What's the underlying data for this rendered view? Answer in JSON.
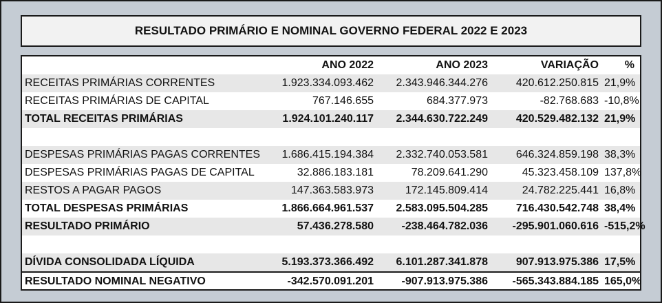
{
  "title": "RESULTADO PRIMÁRIO E NOMINAL GOVERNO FEDERAL 2022 E 2023",
  "columns": [
    "",
    "ANO 2022",
    "ANO 2023",
    "VARIAÇÃO",
    "%"
  ],
  "rows": [
    {
      "label": "RECEITAS PRIMÁRIAS CORRENTES",
      "y2022": "1.923.334.093.462",
      "y2023": "2.343.946.344.276",
      "var": "420.612.250.815",
      "pct": "21,9%"
    },
    {
      "label": "RECEITAS PRIMÁRIAS DE CAPITAL",
      "y2022": "767.146.655",
      "y2023": "684.377.973",
      "var": "-82.768.683",
      "pct": "-10,8%"
    },
    {
      "label": "TOTAL RECEITAS PRIMÁRIAS",
      "y2022": "1.924.101.240.117",
      "y2023": "2.344.630.722.249",
      "var": "420.529.482.132",
      "pct": "21,9%"
    },
    {
      "label": "DESPESAS PRIMÁRIAS PAGAS CORRENTES",
      "y2022": "1.686.415.194.384",
      "y2023": "2.332.740.053.581",
      "var": "646.324.859.198",
      "pct": "38,3%"
    },
    {
      "label": "DESPESAS PRIMÁRIAS PAGAS DE CAPITAL",
      "y2022": "32.886.183.181",
      "y2023": "78.209.641.290",
      "var": "45.323.458.109",
      "pct": "137,8%"
    },
    {
      "label": "RESTOS A PAGAR PAGOS",
      "y2022": "147.363.583.973",
      "y2023": "172.145.809.414",
      "var": "24.782.225.441",
      "pct": "16,8%"
    },
    {
      "label": "TOTAL DESPESAS PRIMÁRIAS",
      "y2022": "1.866.664.961.537",
      "y2023": "2.583.095.504.285",
      "var": "716.430.542.748",
      "pct": "38,4%"
    },
    {
      "label": "RESULTADO PRIMÁRIO",
      "y2022": "57.436.278.580",
      "y2023": "-238.464.782.036",
      "var": "-295.901.060.616",
      "pct": "-515,2%"
    },
    {
      "label": "DÍVIDA CONSOLIDADA LÍQUIDA",
      "y2022": "5.193.373.366.492",
      "y2023": "6.101.287.341.878",
      "var": "907.913.975.386",
      "pct": "17,5%"
    },
    {
      "label": "RESULTADO NOMINAL NEGATIVO",
      "y2022": "-342.570.091.201",
      "y2023": "-907.913.975.386",
      "var": "-565.343.884.185",
      "pct": "165,0%"
    }
  ]
}
